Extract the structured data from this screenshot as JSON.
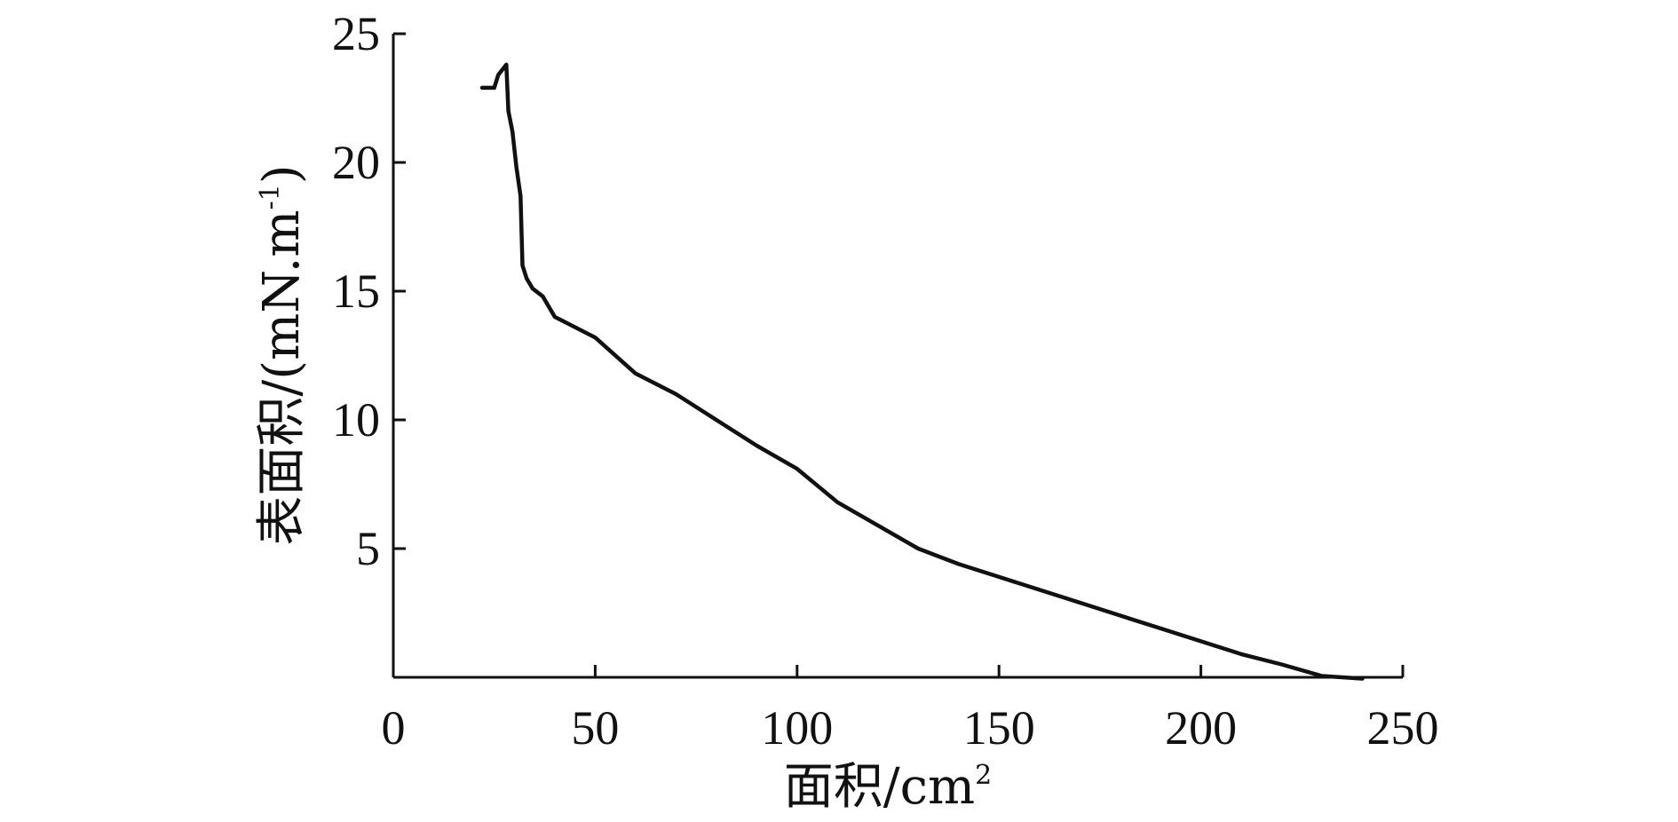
{
  "chart_data": {
    "type": "line",
    "xlabel_main": "面积/cm",
    "xlabel_sup": "2",
    "ylabel_main": "表面积/(mN.m",
    "ylabel_sup": "-1",
    "ylabel_end": ")",
    "xlim": [
      0,
      250
    ],
    "ylim": [
      0,
      25
    ],
    "x_ticks": [
      {
        "value": 0,
        "label": "0"
      },
      {
        "value": 50,
        "label": "50"
      },
      {
        "value": 100,
        "label": "100"
      },
      {
        "value": 150,
        "label": "150"
      },
      {
        "value": 200,
        "label": "200"
      },
      {
        "value": 250,
        "label": "250"
      }
    ],
    "y_ticks": [
      {
        "value": 5,
        "label": "5"
      },
      {
        "value": 10,
        "label": "10"
      },
      {
        "value": 15,
        "label": "15"
      },
      {
        "value": 20,
        "label": "20"
      },
      {
        "value": 25,
        "label": "25"
      }
    ],
    "grid": false,
    "series": [
      {
        "points": [
          [
            22,
            22.9
          ],
          [
            25,
            22.9
          ],
          [
            26,
            23.4
          ],
          [
            28,
            23.8
          ],
          [
            28.5,
            22.0
          ],
          [
            29.5,
            21.2
          ],
          [
            30.5,
            19.8
          ],
          [
            31.5,
            18.7
          ],
          [
            32,
            16.0
          ],
          [
            33,
            15.5
          ],
          [
            34.5,
            15.1
          ],
          [
            37,
            14.8
          ],
          [
            40,
            14.0
          ],
          [
            50,
            13.2
          ],
          [
            60,
            11.8
          ],
          [
            70,
            11.0
          ],
          [
            80,
            10.0
          ],
          [
            90,
            9.0
          ],
          [
            100,
            8.1
          ],
          [
            110,
            6.8
          ],
          [
            120,
            5.9
          ],
          [
            130,
            5.0
          ],
          [
            140,
            4.4
          ],
          [
            150,
            3.9
          ],
          [
            160,
            3.4
          ],
          [
            170,
            2.9
          ],
          [
            180,
            2.4
          ],
          [
            190,
            1.9
          ],
          [
            200,
            1.4
          ],
          [
            210,
            0.9
          ],
          [
            220,
            0.5
          ],
          [
            230,
            0.05
          ],
          [
            240,
            -0.05
          ]
        ]
      }
    ]
  }
}
